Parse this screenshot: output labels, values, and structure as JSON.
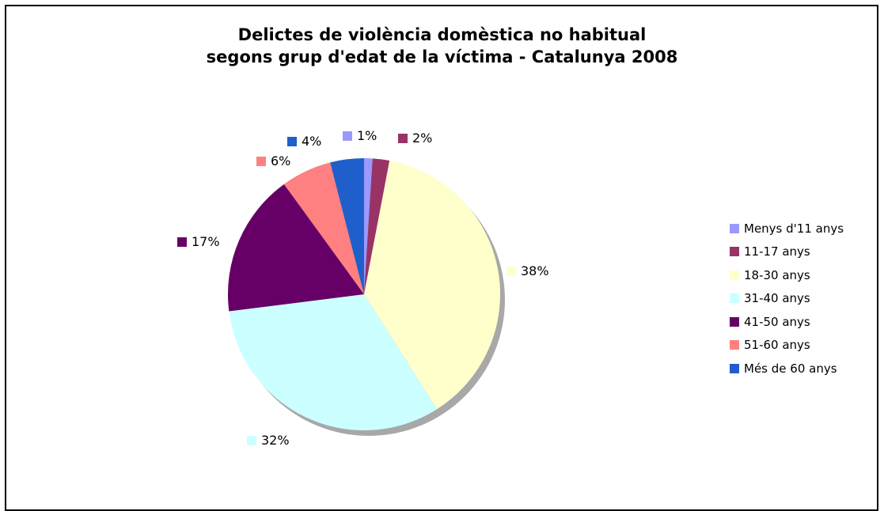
{
  "chart_data": {
    "type": "pie",
    "title_lines": [
      "Delictes de violència domèstica no habitual",
      "segons grup d'edat de la víctima - Catalunya 2008"
    ],
    "categories": [
      "Menys d'11 anys",
      "11-17 anys",
      "18-30 anys",
      "31-40 anys",
      "41-50 anys",
      "51-60 anys",
      "Més de 60 anys"
    ],
    "values": [
      1,
      2,
      38,
      32,
      17,
      6,
      4
    ],
    "labels": [
      "1%",
      "2%",
      "38%",
      "32%",
      "17%",
      "6%",
      "4%"
    ],
    "colors": [
      "#9999ff",
      "#993366",
      "#ffffcc",
      "#ccffff",
      "#660066",
      "#ff8080",
      "#1f5fcc"
    ],
    "legend_position": "right"
  }
}
